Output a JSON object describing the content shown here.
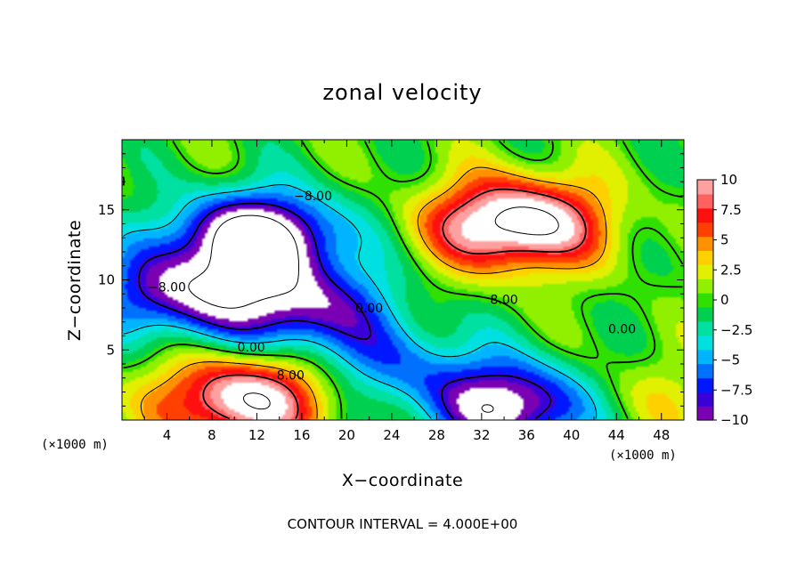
{
  "chart_data": {
    "type": "heatmap",
    "title": "zonal velocity",
    "xlabel": "X−coordinate",
    "ylabel": "Z−coordinate",
    "x_unit_left": "(×1000 m)",
    "x_unit_right": "(×1000 m)",
    "xlim": [
      0,
      50
    ],
    "ylim": [
      0,
      20
    ],
    "x_ticks": [
      4,
      8,
      12,
      16,
      20,
      24,
      28,
      32,
      36,
      40,
      44,
      48
    ],
    "y_ticks": [
      5,
      10,
      15
    ],
    "x_tick_labels": [
      "4",
      "8",
      "12",
      "16",
      "20",
      "24",
      "28",
      "32",
      "36",
      "40",
      "44",
      "48"
    ],
    "y_tick_labels": [
      "5",
      "10",
      "15"
    ],
    "colorbar": {
      "min": -10,
      "max": 10,
      "ticks": [
        10,
        7.5,
        5,
        2.5,
        0,
        -2.5,
        -5,
        -7.5,
        -10
      ],
      "tick_labels": [
        "10",
        "7.5",
        "5",
        "2.5",
        "0",
        "−2.5",
        "−5",
        "−7.5",
        "−10"
      ],
      "palette": [
        "#7a00b4",
        "#3a00d8",
        "#0018ff",
        "#0070ff",
        "#00b4ff",
        "#00e0e0",
        "#00e0a0",
        "#00d050",
        "#30e000",
        "#90f000",
        "#e0f000",
        "#ffd000",
        "#ff9000",
        "#ff4000",
        "#ff1010",
        "#ff6060",
        "#ffa0a0"
      ],
      "saturated_color": "#ffffff"
    },
    "field_features": [
      {
        "x": 12,
        "z": 13,
        "value": -14
      },
      {
        "x": 35,
        "z": 14,
        "value": 14
      },
      {
        "x": 11,
        "z": 1.5,
        "value": 12
      },
      {
        "x": 35,
        "z": 1,
        "value": -12
      },
      {
        "x": 5,
        "z": 9,
        "value": -9
      },
      {
        "x": 16,
        "z": 8,
        "value": -9
      },
      {
        "x": 45,
        "z": 1.5,
        "value": 3
      },
      {
        "x": 24,
        "z": 4,
        "value": -5
      }
    ],
    "contour_labels": [
      {
        "text": "−8.00",
        "x": 17,
        "z": 16
      },
      {
        "text": "−8.00",
        "x": 4,
        "z": 9.5
      },
      {
        "text": "0.00",
        "x": 11.5,
        "z": 5.2
      },
      {
        "text": "8.00",
        "x": 15,
        "z": 3.2
      },
      {
        "text": "0.00",
        "x": 22,
        "z": 8
      },
      {
        "text": "8.00",
        "x": 34,
        "z": 8.6
      },
      {
        "text": "0.00",
        "x": 44.5,
        "z": 6.5
      }
    ],
    "contour_interval_text": "CONTOUR INTERVAL = 4.000E+00"
  }
}
